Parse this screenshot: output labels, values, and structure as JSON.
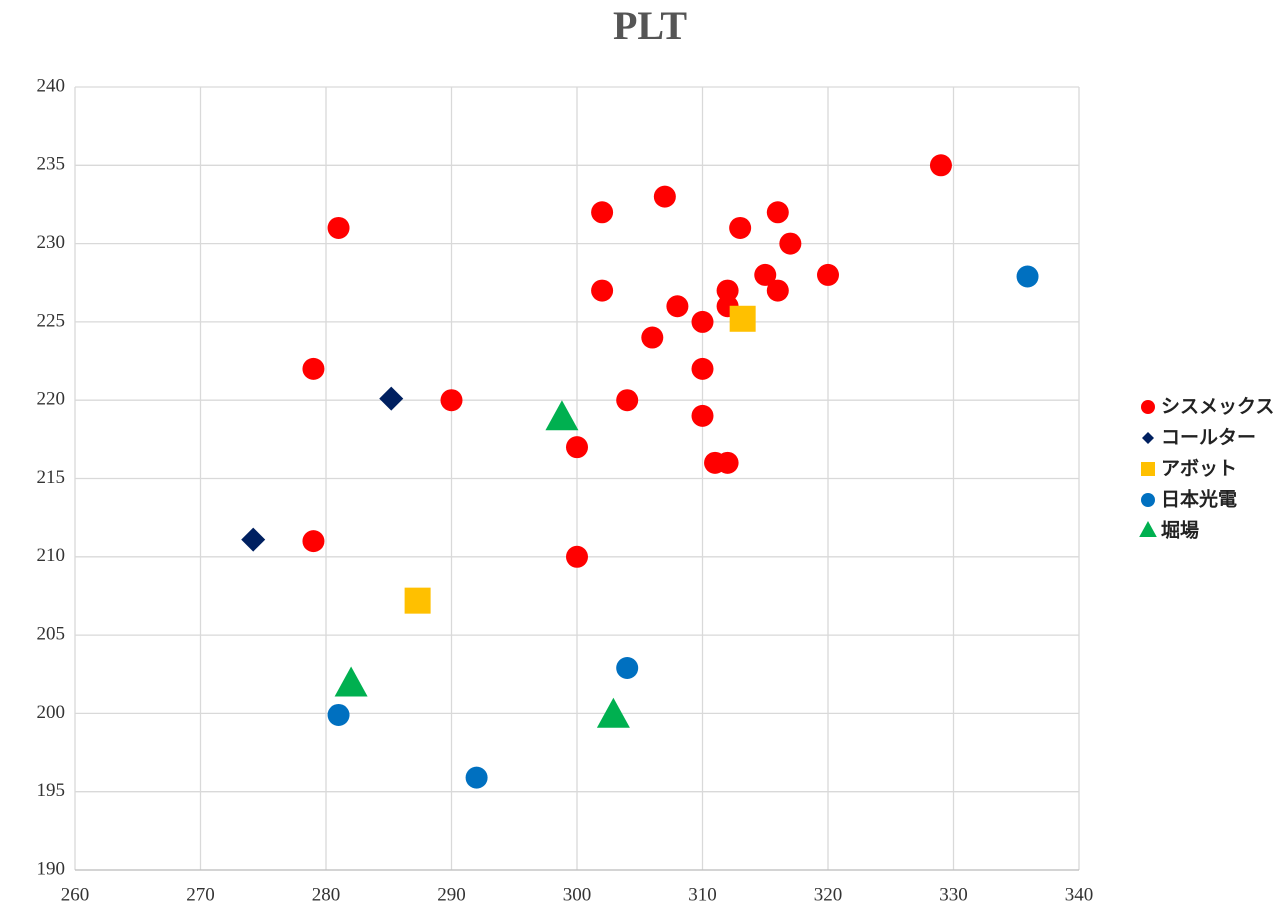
{
  "chart_data": {
    "type": "scatter",
    "title": "PLT",
    "xlim": [
      260,
      340
    ],
    "xticks": [
      260,
      270,
      280,
      290,
      300,
      310,
      320,
      330,
      340
    ],
    "ylim": [
      190,
      240
    ],
    "yticks": [
      190,
      195,
      200,
      205,
      210,
      215,
      220,
      225,
      230,
      235,
      240
    ],
    "grid": true,
    "legend": "right",
    "series": [
      {
        "name": "シスメックス",
        "color": "#ff0000",
        "marker": "circle",
        "x": [
          281,
          279,
          279,
          290,
          300,
          300,
          302,
          302,
          304,
          306,
          307,
          308,
          310,
          310,
          310,
          311,
          312,
          312,
          312,
          313,
          315,
          316,
          316,
          317,
          320,
          329
        ],
        "y": [
          231,
          222,
          211,
          220,
          217,
          210,
          232,
          227,
          220,
          224,
          233,
          226,
          225,
          222,
          219,
          216,
          216,
          227,
          226,
          231,
          228,
          232,
          227,
          230,
          228,
          235
        ]
      },
      {
        "name": "コールター",
        "color": "#002060",
        "marker": "diamond",
        "x": [
          274.2,
          285.2
        ],
        "y": [
          211.1,
          220.1
        ]
      },
      {
        "name": "アボット",
        "color": "#ffc000",
        "marker": "square",
        "x": [
          287.3,
          313.2
        ],
        "y": [
          207.2,
          225.2
        ]
      },
      {
        "name": "日本光電",
        "color": "#0070c0",
        "marker": "circle",
        "x": [
          281.0,
          292.0,
          304.0,
          335.9
        ],
        "y": [
          199.9,
          195.9,
          202.9,
          227.9
        ]
      },
      {
        "name": "堀場",
        "color": "#00b050",
        "marker": "triangle",
        "x": [
          282.0,
          298.8,
          302.9
        ],
        "y": [
          201.8,
          218.8,
          199.8
        ]
      }
    ]
  }
}
